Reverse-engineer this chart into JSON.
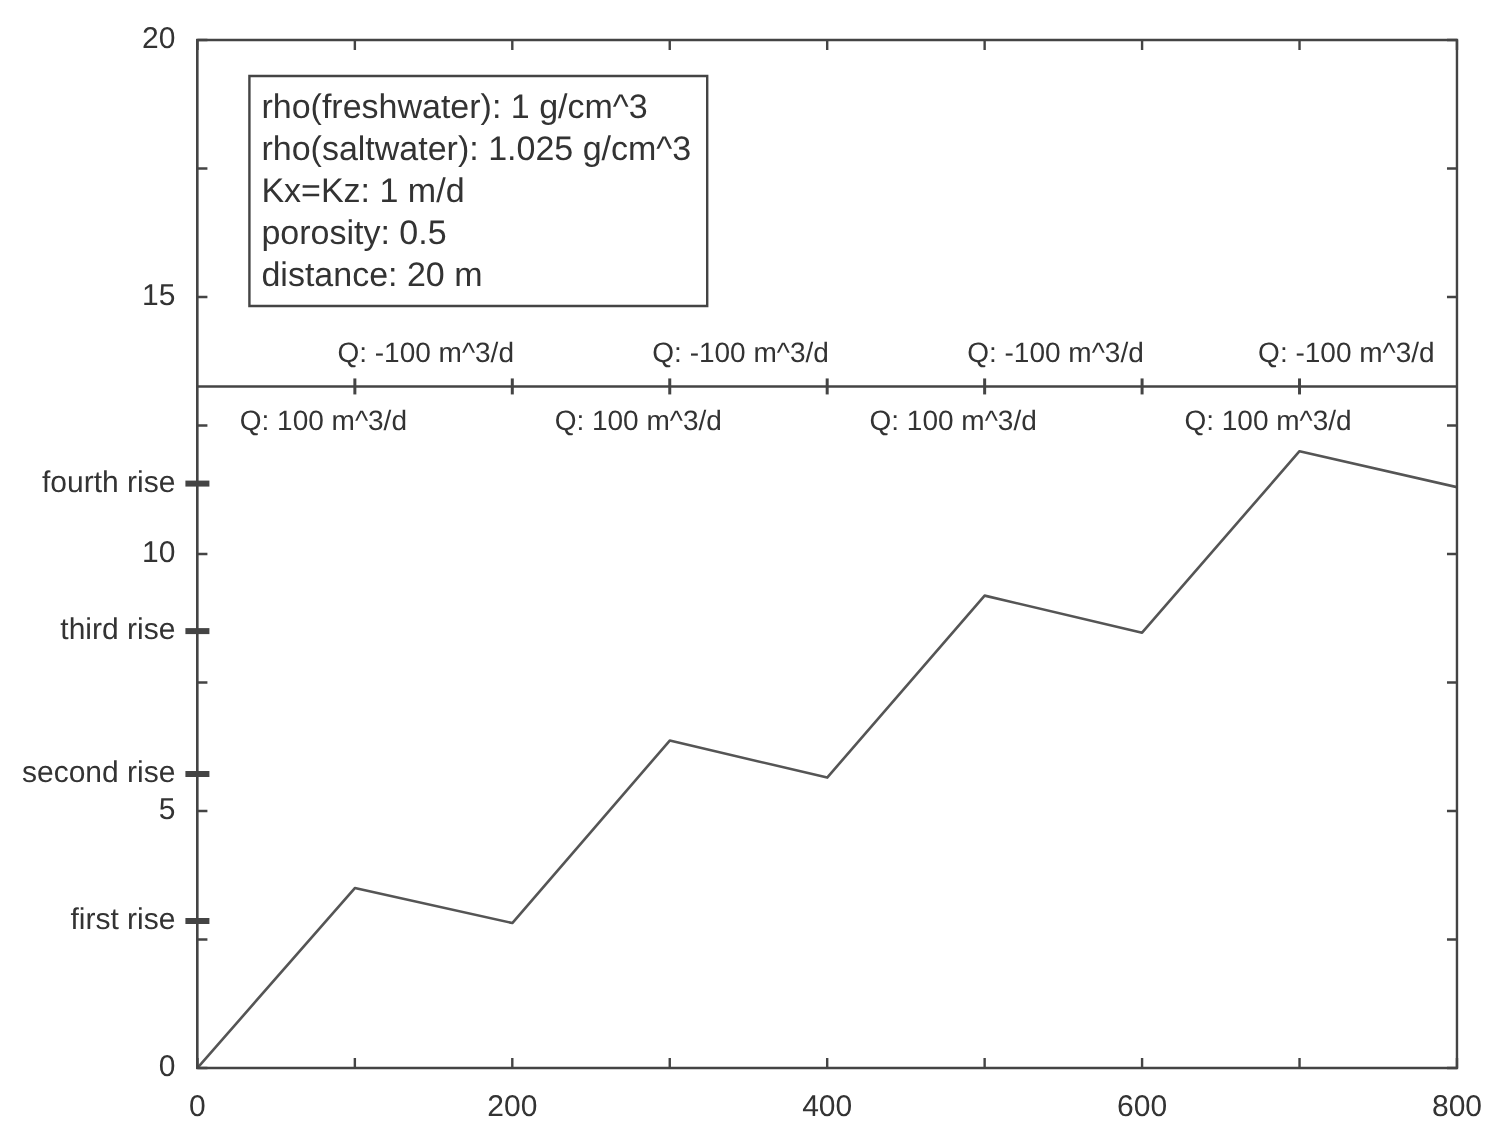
{
  "chart_data": {
    "type": "line",
    "x": [
      0,
      100,
      200,
      300,
      400,
      500,
      600,
      700,
      800
    ],
    "series": [
      {
        "color": "#555555",
        "values": [
          0,
          3.5,
          2.82,
          6.37,
          5.65,
          9.19,
          8.47,
          12.0,
          11.3
        ]
      }
    ],
    "xlim": [
      0,
      800
    ],
    "xticks": [
      0,
      {
        "value": 100,
        "label": null
      },
      200,
      {
        "value": 300,
        "label": null
      },
      400,
      {
        "value": 500,
        "label": null
      },
      600,
      {
        "value": 700,
        "label": null
      },
      800
    ],
    "ylim": [
      0,
      20
    ],
    "yticks": [
      0,
      {
        "value": 2.5,
        "label": null
      },
      {
        "value": 2.86,
        "label": "first rise"
      },
      5,
      {
        "value": 5.72,
        "label": "second rise"
      },
      {
        "value": 7.5,
        "label": null
      },
      {
        "value": 8.5,
        "label": "third rise"
      },
      10,
      {
        "value": 11.37,
        "label": "fourth rise"
      },
      {
        "value": 12.5,
        "label": null
      },
      15,
      {
        "value": 17.5,
        "label": null
      },
      20
    ],
    "grid": false,
    "legend": false,
    "marker": "none",
    "line_style": "solid",
    "ref_lines": [
      {
        "axis": "y",
        "value": 13.26,
        "label": null,
        "color": "#444444"
      }
    ],
    "annotations": [
      "rho(freshwater): 1 g/cm^3",
      "rho(saltwater): 1.025 g/cm^3",
      "Kx=Kz: 1 m/d",
      "porosity: 0.5",
      "distance: 20 m",
      "Q: 100 m^3/d",
      "Q: 100 m^3/d",
      "Q: 100 m^3/d",
      "Q: 100 m^3/d",
      "Q: -100 m^3/d",
      "Q: -100 m^3/d",
      "Q: -100 m^3/d",
      "Q: -100 m^3/d"
    ]
  }
}
